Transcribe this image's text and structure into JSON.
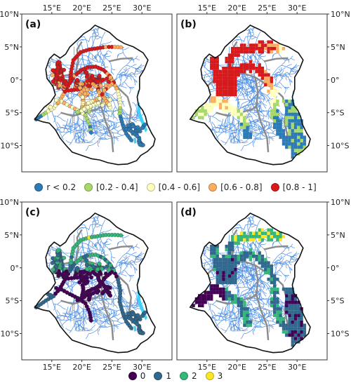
{
  "panels": [
    {
      "label": "(a)",
      "variable": "correlation",
      "style": "points"
    },
    {
      "label": "(b)",
      "variable": "correlation",
      "style": "grid"
    },
    {
      "label": "(c)",
      "variable": "class",
      "style": "points"
    },
    {
      "label": "(d)",
      "variable": "class",
      "style": "grid"
    }
  ],
  "axes": {
    "lat_ticks": [
      "10°N",
      "5°N",
      "0°",
      "5°S",
      "10°S"
    ],
    "lon_ticks": [
      "15°E",
      "20°E",
      "25°E",
      "30°E"
    ],
    "lon_range": [
      10,
      35
    ],
    "lat_range": [
      -14,
      10
    ],
    "lon_values": [
      15,
      20,
      25,
      30
    ],
    "lat_values": [
      10,
      5,
      0,
      -5,
      -10
    ]
  },
  "legend_top": [
    {
      "label": "r < 0.2",
      "color": "#2c7bb6"
    },
    {
      "label": "[0.2 - 0.4]",
      "color": "#a6d96a"
    },
    {
      "label": "[0.4 - 0.6]",
      "color": "#ffffbf"
    },
    {
      "label": "[0.6 - 0.8]",
      "color": "#fdae61"
    },
    {
      "label": "[0.8 - 1]",
      "color": "#d7191c"
    }
  ],
  "legend_bottom": [
    {
      "label": "0",
      "color": "#440154"
    },
    {
      "label": "1",
      "color": "#31688e"
    },
    {
      "label": "2",
      "color": "#35b779"
    },
    {
      "label": "3",
      "color": "#fde725"
    }
  ],
  "colors": {
    "basin_outline": "#111111",
    "rivers": "#4f8fe6",
    "subbasin_lines": "#8a8a8a",
    "lakes": "#3fd0f5"
  }
}
